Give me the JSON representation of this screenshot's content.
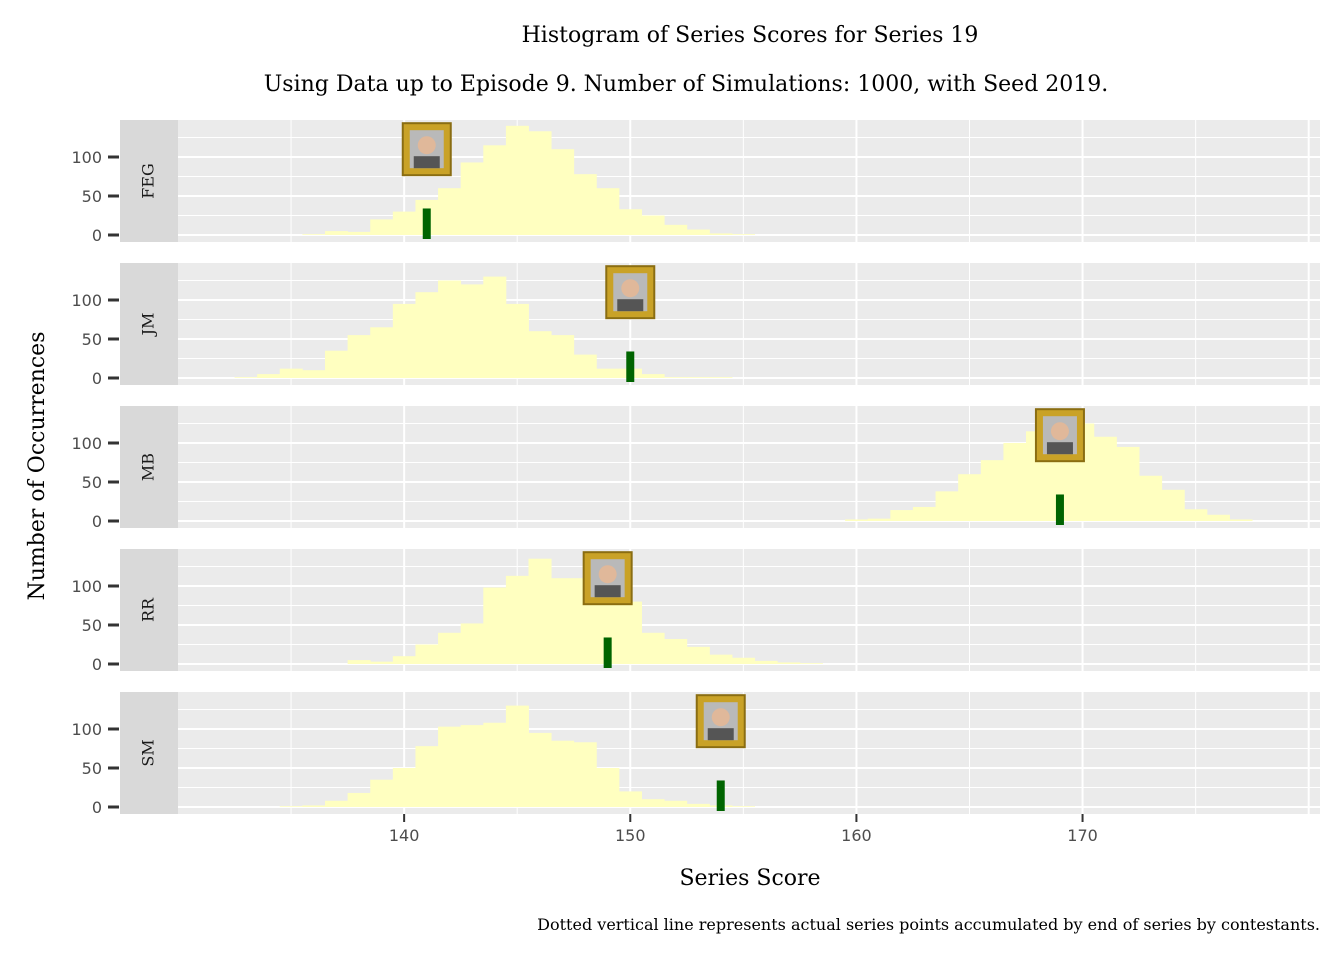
{
  "chart_data": {
    "type": "bar",
    "title": "Histogram of Series Scores for Series 19",
    "subtitle": "Using Data up to Episode 9. Number of Simulations: 1000, with Seed 2019.",
    "xlabel": "Series Score",
    "ylabel": "Number of Occurrences",
    "caption": "Dotted vertical line represents actual series points accumulated by end of series by contestants.",
    "x_ticks": [
      140,
      150,
      160,
      170
    ],
    "y_ticks": [
      0,
      50,
      100
    ],
    "xlim": [
      130,
      180.5
    ],
    "ylim": [
      0,
      145
    ],
    "grid": true,
    "bin_width": 1,
    "colors": {
      "histogram_fill": "#ffffc0",
      "actual_marker": "#006400",
      "panel_bg": "#ebebeb",
      "strip_bg": "#d9d9d9",
      "frame": "#c9a227"
    },
    "facets": [
      {
        "label": "FEG",
        "actual_score": 141,
        "series": [
          {
            "x": 135,
            "y": 0
          },
          {
            "x": 136,
            "y": 1
          },
          {
            "x": 137,
            "y": 5
          },
          {
            "x": 138,
            "y": 4
          },
          {
            "x": 139,
            "y": 20
          },
          {
            "x": 140,
            "y": 30
          },
          {
            "x": 141,
            "y": 45
          },
          {
            "x": 142,
            "y": 60
          },
          {
            "x": 143,
            "y": 93
          },
          {
            "x": 144,
            "y": 115
          },
          {
            "x": 145,
            "y": 140
          },
          {
            "x": 146,
            "y": 133
          },
          {
            "x": 147,
            "y": 110
          },
          {
            "x": 148,
            "y": 78
          },
          {
            "x": 149,
            "y": 60
          },
          {
            "x": 150,
            "y": 33
          },
          {
            "x": 151,
            "y": 25
          },
          {
            "x": 152,
            "y": 13
          },
          {
            "x": 153,
            "y": 7
          },
          {
            "x": 154,
            "y": 2
          },
          {
            "x": 155,
            "y": 1
          }
        ]
      },
      {
        "label": "JM",
        "actual_score": 150,
        "series": [
          {
            "x": 133,
            "y": 1
          },
          {
            "x": 134,
            "y": 5
          },
          {
            "x": 135,
            "y": 12
          },
          {
            "x": 136,
            "y": 10
          },
          {
            "x": 137,
            "y": 35
          },
          {
            "x": 138,
            "y": 55
          },
          {
            "x": 139,
            "y": 65
          },
          {
            "x": 140,
            "y": 95
          },
          {
            "x": 141,
            "y": 110
          },
          {
            "x": 142,
            "y": 125
          },
          {
            "x": 143,
            "y": 120
          },
          {
            "x": 144,
            "y": 130
          },
          {
            "x": 145,
            "y": 95
          },
          {
            "x": 146,
            "y": 60
          },
          {
            "x": 147,
            "y": 55
          },
          {
            "x": 148,
            "y": 30
          },
          {
            "x": 149,
            "y": 12
          },
          {
            "x": 150,
            "y": 12
          },
          {
            "x": 151,
            "y": 5
          },
          {
            "x": 152,
            "y": 1
          },
          {
            "x": 153,
            "y": 1
          },
          {
            "x": 154,
            "y": 1
          }
        ]
      },
      {
        "label": "MB",
        "actual_score": 169,
        "series": [
          {
            "x": 160,
            "y": 2
          },
          {
            "x": 161,
            "y": 3
          },
          {
            "x": 162,
            "y": 14
          },
          {
            "x": 163,
            "y": 18
          },
          {
            "x": 164,
            "y": 38
          },
          {
            "x": 165,
            "y": 60
          },
          {
            "x": 166,
            "y": 78
          },
          {
            "x": 167,
            "y": 100
          },
          {
            "x": 168,
            "y": 115
          },
          {
            "x": 169,
            "y": 130
          },
          {
            "x": 170,
            "y": 125
          },
          {
            "x": 171,
            "y": 108
          },
          {
            "x": 172,
            "y": 95
          },
          {
            "x": 173,
            "y": 58
          },
          {
            "x": 174,
            "y": 40
          },
          {
            "x": 175,
            "y": 15
          },
          {
            "x": 176,
            "y": 8
          },
          {
            "x": 177,
            "y": 2
          }
        ]
      },
      {
        "label": "RR",
        "actual_score": 149,
        "series": [
          {
            "x": 138,
            "y": 5
          },
          {
            "x": 139,
            "y": 3
          },
          {
            "x": 140,
            "y": 10
          },
          {
            "x": 141,
            "y": 25
          },
          {
            "x": 142,
            "y": 40
          },
          {
            "x": 143,
            "y": 52
          },
          {
            "x": 144,
            "y": 98
          },
          {
            "x": 145,
            "y": 113
          },
          {
            "x": 146,
            "y": 135
          },
          {
            "x": 147,
            "y": 110
          },
          {
            "x": 148,
            "y": 110
          },
          {
            "x": 149,
            "y": 100
          },
          {
            "x": 150,
            "y": 80
          },
          {
            "x": 151,
            "y": 40
          },
          {
            "x": 152,
            "y": 32
          },
          {
            "x": 153,
            "y": 22
          },
          {
            "x": 154,
            "y": 12
          },
          {
            "x": 155,
            "y": 8
          },
          {
            "x": 156,
            "y": 4
          },
          {
            "x": 157,
            "y": 2
          },
          {
            "x": 158,
            "y": 1
          }
        ]
      },
      {
        "label": "SM",
        "actual_score": 154,
        "series": [
          {
            "x": 135,
            "y": 1
          },
          {
            "x": 136,
            "y": 2
          },
          {
            "x": 137,
            "y": 8
          },
          {
            "x": 138,
            "y": 18
          },
          {
            "x": 139,
            "y": 35
          },
          {
            "x": 140,
            "y": 50
          },
          {
            "x": 141,
            "y": 78
          },
          {
            "x": 142,
            "y": 103
          },
          {
            "x": 143,
            "y": 105
          },
          {
            "x": 144,
            "y": 108
          },
          {
            "x": 145,
            "y": 130
          },
          {
            "x": 146,
            "y": 95
          },
          {
            "x": 147,
            "y": 85
          },
          {
            "x": 148,
            "y": 83
          },
          {
            "x": 149,
            "y": 50
          },
          {
            "x": 150,
            "y": 20
          },
          {
            "x": 151,
            "y": 10
          },
          {
            "x": 152,
            "y": 8
          },
          {
            "x": 153,
            "y": 4
          },
          {
            "x": 154,
            "y": 2
          },
          {
            "x": 155,
            "y": 1
          }
        ]
      }
    ]
  }
}
